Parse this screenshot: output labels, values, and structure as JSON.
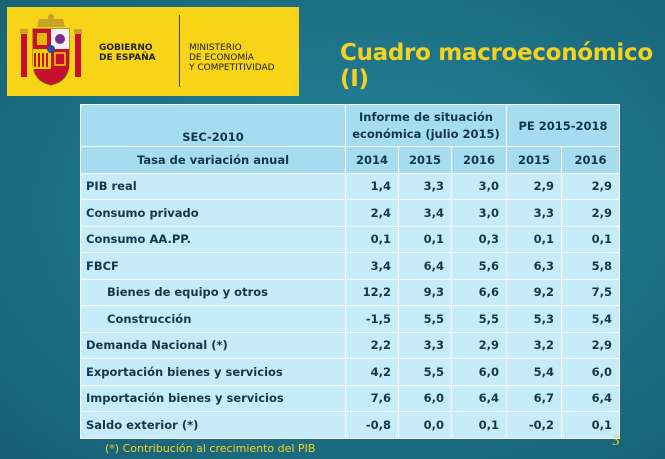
{
  "header": {
    "gov_line1": "GOBIERNO",
    "gov_line2": "DE ESPAÑA",
    "min_line1": "MINISTERIO",
    "min_line2": "DE ECONOMÍA",
    "min_line3": "Y COMPETITIVIDAD",
    "title": "Cuadro macroeconómico (I)"
  },
  "table": {
    "col_header_top": "SEC-2010",
    "col_header_sub": "Tasa de variación anual",
    "group1_label": "Informe de situación económica (julio 2015)",
    "group2_label": "PE 2015-2018",
    "years": [
      "2014",
      "2015",
      "2016",
      "2015",
      "2016"
    ],
    "rows": [
      {
        "label": "PIB real",
        "values": [
          "1,4",
          "3,3",
          "3,0",
          "2,9",
          "2,9"
        ]
      },
      {
        "label": "Consumo privado",
        "values": [
          "2,4",
          "3,4",
          "3,0",
          "3,3",
          "2,9"
        ]
      },
      {
        "label": "Consumo  AA.PP.",
        "values": [
          "0,1",
          "0,1",
          "0,3",
          "0,1",
          "0,1"
        ]
      },
      {
        "label": "FBCF",
        "values": [
          "3,4",
          "6,4",
          "5,6",
          "6,3",
          "5,8"
        ]
      },
      {
        "label": "Bienes de equipo y otros",
        "values": [
          "12,2",
          "9,3",
          "6,6",
          "9,2",
          "7,5"
        ]
      },
      {
        "label": "Construcción",
        "values": [
          "-1,5",
          "5,5",
          "5,5",
          "5,3",
          "5,4"
        ]
      },
      {
        "label": "Demanda Nacional  (*)",
        "values": [
          "2,2",
          "3,3",
          "2,9",
          "3,2",
          "2,9"
        ]
      },
      {
        "label": "Exportación bienes y servicios",
        "values": [
          "4,2",
          "5,5",
          "6,0",
          "5,4",
          "6,0"
        ]
      },
      {
        "label": "Importación bienes y servicios",
        "values": [
          "7,6",
          "6,0",
          "6,4",
          "6,7",
          "6,4"
        ]
      },
      {
        "label": "Saldo exterior  (*)",
        "values": [
          "-0,8",
          "0,0",
          "0,1",
          "-0,2",
          "0,1"
        ]
      }
    ]
  },
  "footnote": "(*) Contribución al crecimiento del PIB",
  "page_number": "3",
  "colors": {
    "background": "#1c6f86",
    "title_yellow": "#f5d220",
    "logo_yellow": "#f7d417",
    "header_cell": "#a6dcef",
    "body_cell": "#c6ecf9"
  }
}
